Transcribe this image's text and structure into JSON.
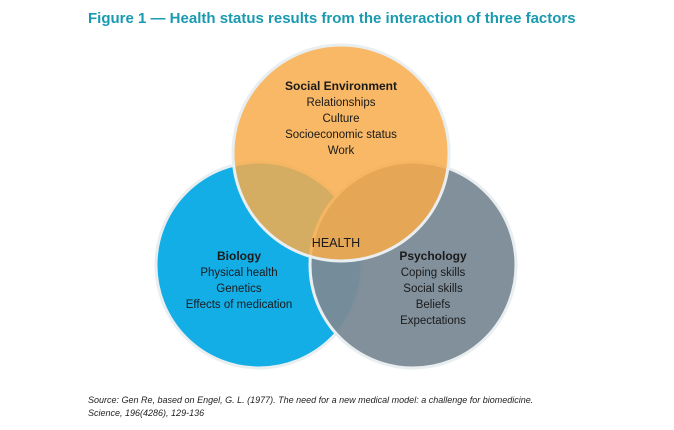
{
  "title": "Figure 1 — Health status results from the interaction of three factors",
  "colors": {
    "title": "#1a9ab0",
    "social_environment": "#f7ac4a",
    "biology": "#13aee6",
    "psychology": "#7a8a96",
    "outline": "#e9eef0"
  },
  "circles": {
    "social_environment": {
      "heading": "Social Environment",
      "items": [
        "Relationships",
        "Culture",
        "Socioeconomic status",
        "Work"
      ]
    },
    "biology": {
      "heading": "Biology",
      "items": [
        "Physical health",
        "Genetics",
        "Effects of medication"
      ]
    },
    "psychology": {
      "heading": "Psychology",
      "items": [
        "Coping skills",
        "Social skills",
        "Beliefs",
        "Expectations"
      ]
    }
  },
  "center_label": "HEALTH",
  "source": {
    "line1": "Source: Gen Re, based on Engel, G. L. (1977). The need for a new medical model: a challenge for biomedicine.",
    "line2": "Science, 196(4286), 129-136"
  }
}
